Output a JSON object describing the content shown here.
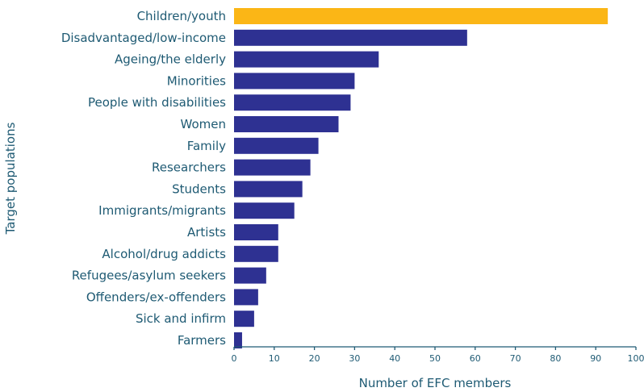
{
  "chart_data": {
    "type": "bar",
    "orientation": "horizontal",
    "categories": [
      "Children/youth",
      "Disadvantaged/low-income",
      "Ageing/the elderly",
      "Minorities",
      "People with disabilities",
      "Women",
      "Family",
      "Researchers",
      "Students",
      "Immigrants/migrants",
      "Artists",
      "Alcohol/drug addicts",
      "Refugees/asylum seekers",
      "Offenders/ex-offenders",
      "Sick and infirm",
      "Farmers"
    ],
    "values": [
      93,
      58,
      36,
      30,
      29,
      26,
      21,
      19,
      17,
      15,
      11,
      11,
      8,
      6,
      5,
      2
    ],
    "highlight_index": 0,
    "xlabel": "Number of EFC members",
    "ylabel": "Target populations",
    "xlim": [
      0,
      100
    ],
    "xticks": [
      0,
      10,
      20,
      30,
      40,
      50,
      60,
      70,
      80,
      90,
      100
    ],
    "grid": false,
    "colors": {
      "bar": "#2e3192",
      "highlight": "#fbb616",
      "text": "#1e5a73",
      "axis": "#1e5a73"
    }
  }
}
